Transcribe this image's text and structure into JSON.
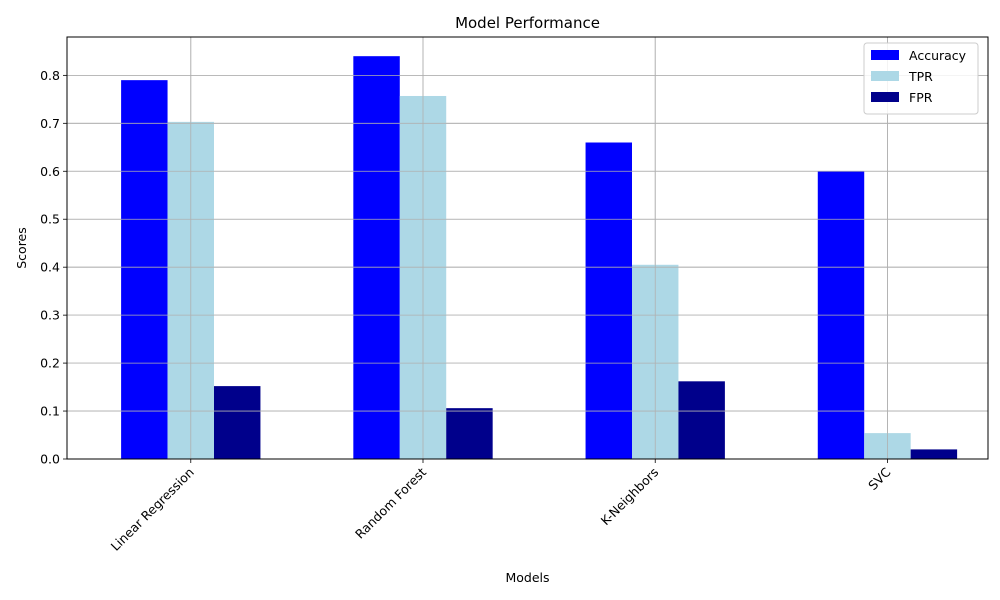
{
  "chart_data": {
    "type": "bar",
    "title": "Model Performance",
    "xlabel": "Models",
    "ylabel": "Scores",
    "categories": [
      "Linear Regression",
      "Random Forest",
      "K-Neighbors",
      "SVC"
    ],
    "series": [
      {
        "name": "Accuracy",
        "color": "#0000ff",
        "values": [
          0.79,
          0.84,
          0.66,
          0.6
        ]
      },
      {
        "name": "TPR",
        "color": "#add8e6",
        "values": [
          0.703,
          0.757,
          0.405,
          0.054
        ]
      },
      {
        "name": "FPR",
        "color": "#00008b",
        "values": [
          0.152,
          0.106,
          0.162,
          0.02
        ]
      }
    ],
    "ylim": [
      0,
      0.88
    ],
    "yticks": [
      "0.0",
      "0.1",
      "0.2",
      "0.3",
      "0.4",
      "0.5",
      "0.6",
      "0.7",
      "0.8"
    ],
    "grid": true,
    "legend_position": "top-right",
    "xtick_rotation": 45
  }
}
